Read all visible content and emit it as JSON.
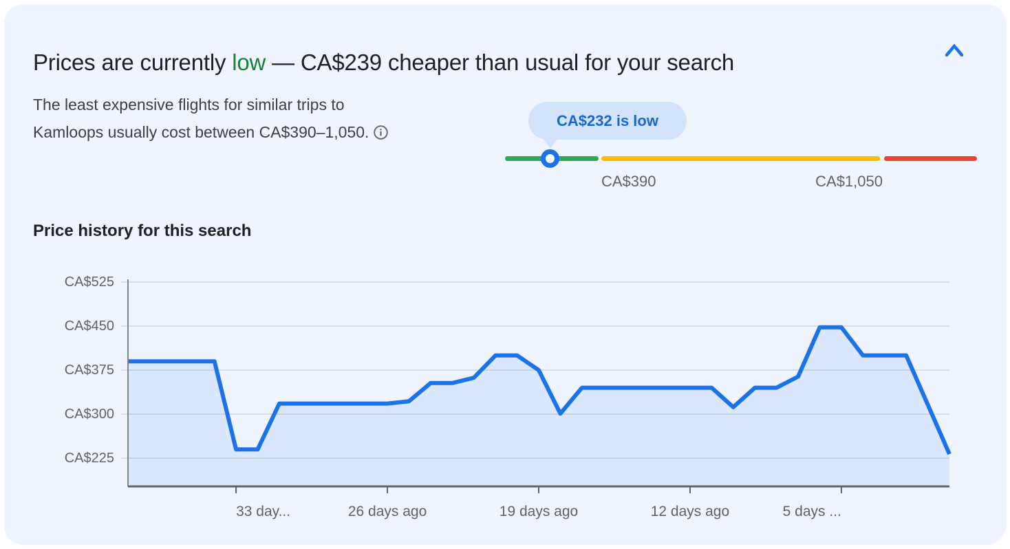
{
  "header": {
    "title_prefix": "Prices are currently ",
    "title_low": "low",
    "title_suffix": " — CA$239 cheaper than usual for your search"
  },
  "insights": {
    "description": "The least expensive flights for similar trips to Kamloops usually cost between CA$390–1,050."
  },
  "slider": {
    "tooltip": "CA$232 is low",
    "low_label": "CA$390",
    "high_label": "CA$1,050",
    "segment_colors": {
      "low": "#34a853",
      "typical": "#fbbc04",
      "high": "#ea4335"
    },
    "marker_color": "#1a73e8",
    "tooltip_bg": "#d2e3fc",
    "tooltip_text_color": "#1967d2"
  },
  "history": {
    "title": "Price history for this search"
  },
  "chart_data": {
    "type": "area",
    "title": "Price history for this search",
    "currency_prefix": "CA$",
    "x_days_ago": [
      38,
      37,
      36,
      35,
      34,
      33,
      32,
      31,
      30,
      29,
      28,
      27,
      26,
      25,
      24,
      23,
      22,
      21,
      20,
      19,
      18,
      17,
      16,
      15,
      14,
      13,
      12,
      11,
      10,
      9,
      8,
      7,
      6,
      5,
      4,
      3,
      2,
      1,
      0
    ],
    "values": [
      390,
      390,
      390,
      390,
      390,
      240,
      240,
      318,
      318,
      318,
      318,
      318,
      318,
      322,
      353,
      353,
      362,
      400,
      400,
      375,
      301,
      345,
      345,
      345,
      345,
      345,
      345,
      345,
      312,
      345,
      345,
      364,
      448,
      448,
      400,
      400,
      400,
      316,
      232
    ],
    "ytick_values": [
      525,
      450,
      375,
      300,
      225
    ],
    "ytick_labels": [
      "CA$525",
      "CA$450",
      "CA$375",
      "CA$300",
      "CA$225"
    ],
    "xticks": [
      {
        "label": "33 day...",
        "days_ago": 33
      },
      {
        "label": "26 days ago",
        "days_ago": 26
      },
      {
        "label": "19 days ago",
        "days_ago": 19
      },
      {
        "label": "12 days ago",
        "days_ago": 12
      },
      {
        "label": "5 days ...",
        "days_ago": 5
      }
    ],
    "x_range_days_ago": [
      38,
      0
    ],
    "grid": true,
    "legend": null,
    "line_color": "#1a73e8",
    "fill_color": "rgba(26,115,232,0.10)",
    "grid_color": "#d8dce6",
    "axis_color": "#80868b"
  }
}
